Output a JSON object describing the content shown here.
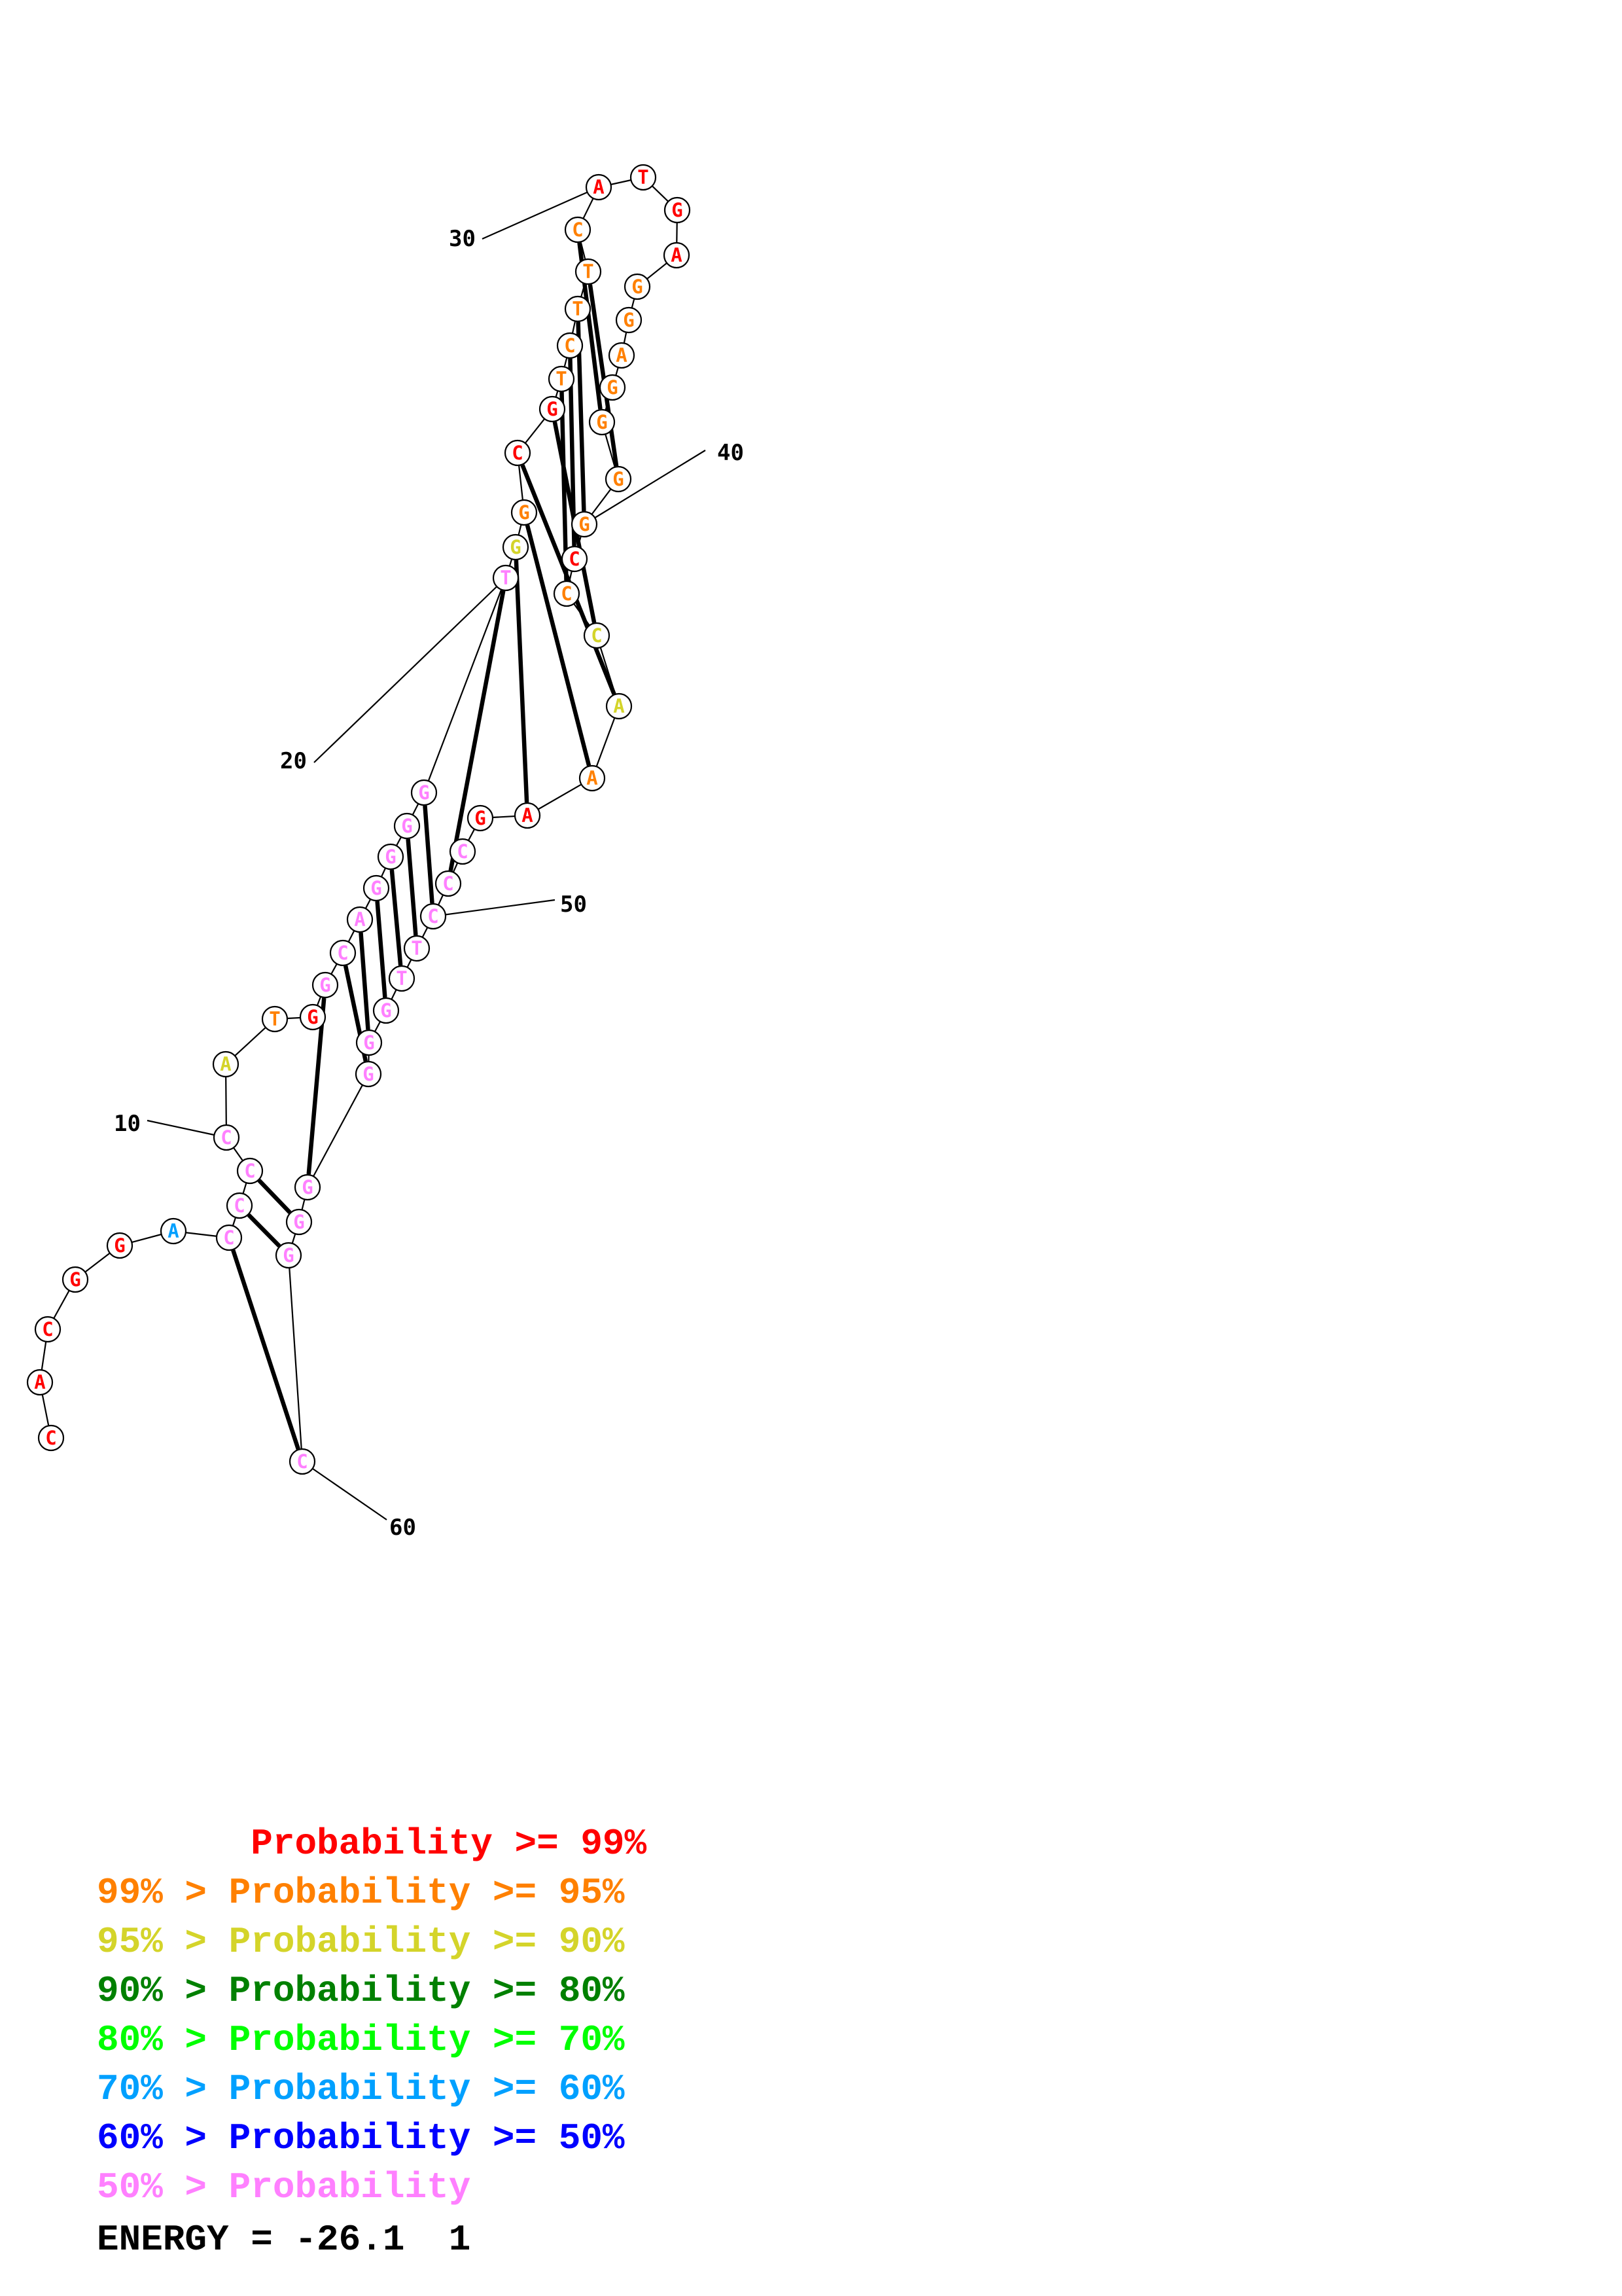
{
  "structure": {
    "sequence": [
      "C",
      "A",
      "C",
      "G",
      "G",
      "A",
      "C",
      "C",
      "C",
      "C",
      "A",
      "T",
      "G",
      "G",
      "C",
      "A",
      "G",
      "G",
      "G",
      "G",
      "T",
      "G",
      "G",
      "C",
      "G",
      "T",
      "C",
      "T",
      "T",
      "C",
      "A",
      "T",
      "G",
      "A",
      "G",
      "G",
      "A",
      "G",
      "G",
      "G",
      "G",
      "C",
      "C",
      "C",
      "A",
      "A",
      "A",
      "G",
      "C",
      "C",
      "C",
      "T",
      "T",
      "G",
      "G",
      "G",
      "G",
      "G",
      "G",
      "C"
    ],
    "probability_class": [
      0,
      0,
      0,
      0,
      0,
      5,
      7,
      7,
      7,
      7,
      2,
      1,
      0,
      7,
      7,
      7,
      7,
      7,
      7,
      7,
      7,
      2,
      1,
      0,
      0,
      1,
      1,
      1,
      1,
      1,
      0,
      0,
      0,
      0,
      1,
      1,
      1,
      1,
      1,
      1,
      1,
      0,
      1,
      2,
      2,
      1,
      0,
      0,
      7,
      7,
      7,
      7,
      7,
      7,
      7,
      7,
      7,
      7,
      7,
      7
    ],
    "pairs": [
      [
        7,
        60
      ],
      [
        8,
        59
      ],
      [
        9,
        58
      ],
      [
        14,
        57
      ],
      [
        15,
        56
      ],
      [
        16,
        55
      ],
      [
        17,
        54
      ],
      [
        18,
        53
      ],
      [
        19,
        52
      ],
      [
        20,
        51
      ],
      [
        21,
        50
      ],
      [
        22,
        47
      ],
      [
        23,
        46
      ],
      [
        24,
        45
      ],
      [
        25,
        44
      ],
      [
        26,
        43
      ],
      [
        27,
        42
      ],
      [
        28,
        41
      ],
      [
        29,
        40
      ],
      [
        30,
        39
      ]
    ],
    "tick_marks": [
      {
        "label": "10",
        "index": 10
      },
      {
        "label": "20",
        "index": 21
      },
      {
        "label": "30",
        "index": 31
      },
      {
        "label": "40",
        "index": 41
      },
      {
        "label": "50",
        "index": 51
      },
      {
        "label": "60",
        "index": 60
      }
    ]
  },
  "legend": {
    "colors": [
      "#ff0000",
      "#ff8000",
      "#d4d42a",
      "#008000",
      "#00ff00",
      "#00a0ff",
      "#0000ff",
      "#ff80ff"
    ],
    "lines": [
      "       Probability >= 99%",
      "99% > Probability >= 95%",
      "95% > Probability >= 90%",
      "90% > Probability >= 80%",
      "80% > Probability >= 70%",
      "70% > Probability >= 60%",
      "60% > Probability >= 50%",
      "50% > Probability"
    ]
  },
  "energy": "ENERGY = -26.1  1"
}
